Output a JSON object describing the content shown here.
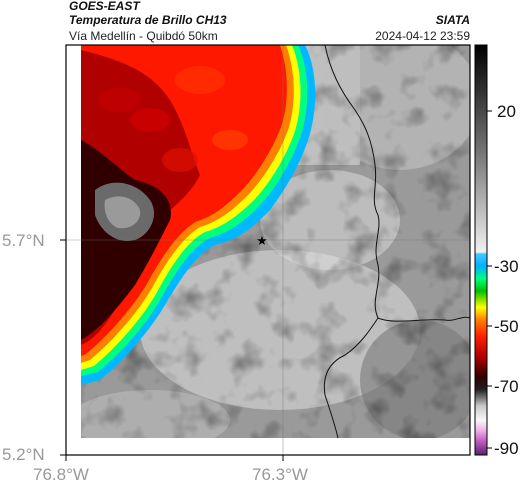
{
  "header": {
    "satellite": "GOES-EAST",
    "product": "Temperatura de Brillo CH13",
    "region": "Vía Medellín - Quibdó 50km",
    "agency": "SIATA",
    "datetime": "2024-04-12 23:59"
  },
  "axes": {
    "y_ticks": [
      "5.7°N",
      "5.2°N"
    ],
    "x_ticks": [
      "76.8°W",
      "76.3°W"
    ]
  },
  "colorbar": {
    "tick_labels": [
      "20",
      "-30",
      "-50",
      "-70",
      "-90"
    ],
    "scale": [
      "#5a2070",
      "#c060c0",
      "#f0b0e8",
      "#f8f8f8",
      "#c8c8c8",
      "#202020",
      "#300000",
      "#b00000",
      "#ff2000",
      "#ff8000",
      "#ffff00",
      "#00c000",
      "#00ff80",
      "#00b0ff",
      "#40c8ff",
      "#f0f0f0",
      "#707070",
      "#000000"
    ]
  },
  "map": {
    "marker_icon": "star-icon"
  }
}
